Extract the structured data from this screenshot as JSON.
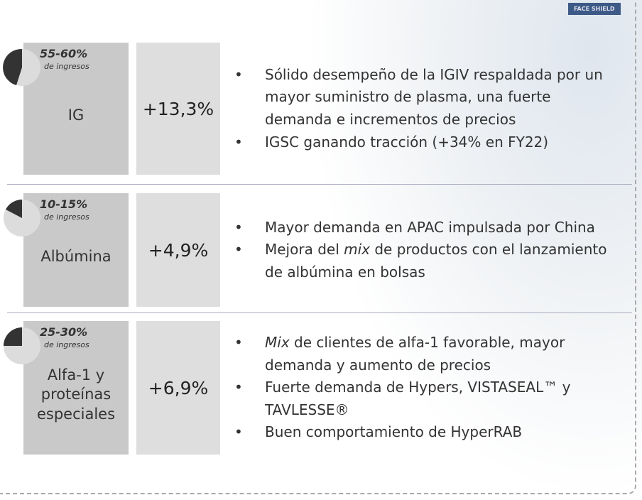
{
  "rows": [
    {
      "share": "55-60%",
      "share_note": "de ingresos",
      "name": "IG",
      "growth": "+13,3%",
      "bullets": [
        [
          "Sólido desempeño de la IGIV respaldada por un mayor suministro de plasma, una fuerte demanda e incrementos de precios"
        ],
        [
          "IGSC ganando tracción (+34% en FY22)"
        ]
      ]
    },
    {
      "share": "10-15%",
      "share_note": "de ingresos",
      "name": "Albúmina",
      "growth": "+4,9%",
      "bullets": [
        [
          "Mayor demanda en APAC impulsada por China"
        ],
        [
          "Mejora del ",
          "mix",
          " de productos con el lanzamiento de albúmina en bolsas"
        ]
      ]
    },
    {
      "share": "25-30%",
      "share_note": "de ingresos",
      "name": "Alfa-1 y proteínas especiales",
      "growth": "+6,9%",
      "bullets": [
        [
          "Mix",
          " de clientes de alfa-1 favorable, mayor demanda y aumento de precios"
        ],
        [
          "Fuerte demanda de Hypers, VISTASEAL™ y TAVLESSE®"
        ],
        [
          "Buen comportamiento de HyperRAB"
        ]
      ]
    }
  ],
  "badge": "FACE SHIELD"
}
